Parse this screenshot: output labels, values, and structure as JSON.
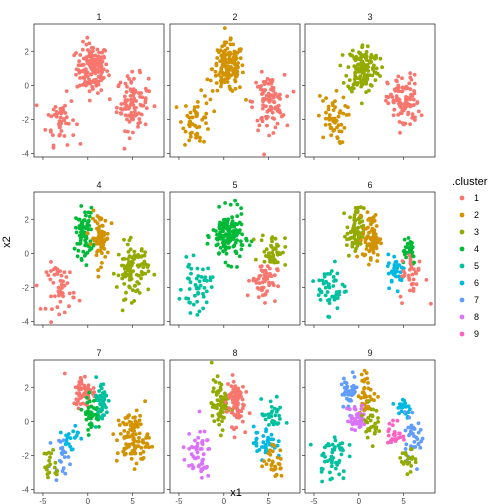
{
  "chart_data": {
    "type": "scatter",
    "xlabel": "x1",
    "ylabel": "x2",
    "xlim": [
      -6,
      8.5
    ],
    "ylim": [
      -4.2,
      3.6
    ],
    "x_ticks": [
      -5,
      0,
      5
    ],
    "y_ticks": [
      -4,
      -2,
      0,
      2
    ],
    "legend": {
      "title": ".cluster",
      "position": "right",
      "entries": [
        "1",
        "2",
        "3",
        "4",
        "5",
        "6",
        "7",
        "8",
        "9"
      ]
    },
    "colors": {
      "1": "#F8766D",
      "2": "#D39200",
      "3": "#93AA00",
      "4": "#00BA38",
      "5": "#00C19F",
      "6": "#00B9E3",
      "7": "#619CFF",
      "8": "#DB72FB",
      "9": "#FF61C3"
    },
    "panels": [
      {
        "k": "1",
        "groups": [
          {
            "cluster": "1",
            "center": [
              0.5,
              1.0
            ],
            "spread": [
              1.1,
              0.9
            ],
            "count": 150
          },
          {
            "cluster": "1",
            "center": [
              -3.0,
              -2.0
            ],
            "spread": [
              1.0,
              0.9
            ],
            "count": 50
          },
          {
            "cluster": "1",
            "center": [
              5.0,
              -1.0
            ],
            "spread": [
              1.1,
              1.0
            ],
            "count": 100
          }
        ]
      },
      {
        "k": "2",
        "groups": [
          {
            "cluster": "2",
            "center": [
              0.5,
              1.0
            ],
            "spread": [
              1.1,
              0.9
            ],
            "count": 150
          },
          {
            "cluster": "2",
            "center": [
              -3.0,
              -2.0
            ],
            "spread": [
              1.0,
              0.9
            ],
            "count": 50
          },
          {
            "cluster": "1",
            "center": [
              5.0,
              -1.0
            ],
            "spread": [
              1.1,
              1.0
            ],
            "count": 100
          }
        ]
      },
      {
        "k": "3",
        "groups": [
          {
            "cluster": "3",
            "center": [
              0.5,
              1.0
            ],
            "spread": [
              1.1,
              0.9
            ],
            "count": 150
          },
          {
            "cluster": "2",
            "center": [
              -3.0,
              -2.0
            ],
            "spread": [
              1.0,
              0.9
            ],
            "count": 50
          },
          {
            "cluster": "1",
            "center": [
              5.0,
              -1.0
            ],
            "spread": [
              1.1,
              1.0
            ],
            "count": 100
          }
        ]
      },
      {
        "k": "4",
        "groups": [
          {
            "cluster": "4",
            "center": [
              -0.4,
              1.2
            ],
            "spread": [
              0.6,
              0.9
            ],
            "count": 75
          },
          {
            "cluster": "2",
            "center": [
              1.4,
              0.9
            ],
            "spread": [
              0.6,
              0.9
            ],
            "count": 75
          },
          {
            "cluster": "1",
            "center": [
              -3.0,
              -2.0
            ],
            "spread": [
              1.0,
              0.9
            ],
            "count": 50
          },
          {
            "cluster": "3",
            "center": [
              5.0,
              -1.0
            ],
            "spread": [
              1.1,
              1.0
            ],
            "count": 100
          }
        ]
      },
      {
        "k": "5",
        "groups": [
          {
            "cluster": "4",
            "center": [
              0.5,
              1.0
            ],
            "spread": [
              1.1,
              0.9
            ],
            "count": 150
          },
          {
            "cluster": "5",
            "center": [
              -3.0,
              -2.0
            ],
            "spread": [
              1.0,
              0.9
            ],
            "count": 50
          },
          {
            "cluster": "3",
            "center": [
              5.5,
              0.2
            ],
            "spread": [
              0.9,
              0.6
            ],
            "count": 45
          },
          {
            "cluster": "1",
            "center": [
              4.5,
              -1.6
            ],
            "spread": [
              0.9,
              0.7
            ],
            "count": 55
          }
        ]
      },
      {
        "k": "6",
        "groups": [
          {
            "cluster": "3",
            "center": [
              -0.4,
              1.2
            ],
            "spread": [
              0.6,
              0.9
            ],
            "count": 75
          },
          {
            "cluster": "2",
            "center": [
              1.4,
              0.9
            ],
            "spread": [
              0.6,
              0.9
            ],
            "count": 75
          },
          {
            "cluster": "5",
            "center": [
              -3.0,
              -2.0
            ],
            "spread": [
              1.0,
              0.9
            ],
            "count": 50
          },
          {
            "cluster": "4",
            "center": [
              5.5,
              0.3
            ],
            "spread": [
              0.6,
              0.6
            ],
            "count": 30
          },
          {
            "cluster": "6",
            "center": [
              4.2,
              -1.0
            ],
            "spread": [
              0.6,
              0.6
            ],
            "count": 35
          },
          {
            "cluster": "1",
            "center": [
              6.0,
              -1.4
            ],
            "spread": [
              0.9,
              0.9
            ],
            "count": 35
          }
        ]
      },
      {
        "k": "7",
        "groups": [
          {
            "cluster": "1",
            "center": [
              -0.4,
              1.8
            ],
            "spread": [
              0.8,
              0.6
            ],
            "count": 60
          },
          {
            "cluster": "4",
            "center": [
              0.4,
              0.5
            ],
            "spread": [
              0.6,
              0.6
            ],
            "count": 45
          },
          {
            "cluster": "5",
            "center": [
              1.5,
              1.2
            ],
            "spread": [
              0.5,
              0.8
            ],
            "count": 45
          },
          {
            "cluster": "6",
            "center": [
              -2.0,
              -1.0
            ],
            "spread": [
              0.6,
              0.6
            ],
            "count": 20
          },
          {
            "cluster": "7",
            "center": [
              -3.0,
              -2.0
            ],
            "spread": [
              0.6,
              0.6
            ],
            "count": 20
          },
          {
            "cluster": "3",
            "center": [
              -4.0,
              -2.6
            ],
            "spread": [
              0.6,
              0.7
            ],
            "count": 20
          },
          {
            "cluster": "2",
            "center": [
              5.0,
              -1.0
            ],
            "spread": [
              1.1,
              1.0
            ],
            "count": 100
          }
        ]
      },
      {
        "k": "8",
        "groups": [
          {
            "cluster": "3",
            "center": [
              -0.4,
              1.0
            ],
            "spread": [
              0.6,
              0.9
            ],
            "count": 70
          },
          {
            "cluster": "1",
            "center": [
              1.3,
              1.2
            ],
            "spread": [
              0.6,
              0.9
            ],
            "count": 80
          },
          {
            "cluster": "8",
            "center": [
              -3.0,
              -2.0
            ],
            "spread": [
              1.0,
              0.9
            ],
            "count": 50
          },
          {
            "cluster": "5",
            "center": [
              5.5,
              0.3
            ],
            "spread": [
              0.8,
              0.6
            ],
            "count": 30
          },
          {
            "cluster": "6",
            "center": [
              4.6,
              -1.2
            ],
            "spread": [
              0.8,
              0.6
            ],
            "count": 40
          },
          {
            "cluster": "2",
            "center": [
              5.5,
              -2.4
            ],
            "spread": [
              0.7,
              0.6
            ],
            "count": 30
          }
        ]
      },
      {
        "k": "9",
        "groups": [
          {
            "cluster": "7",
            "center": [
              -1.0,
              1.8
            ],
            "spread": [
              0.6,
              0.6
            ],
            "count": 40
          },
          {
            "cluster": "2",
            "center": [
              0.9,
              1.6
            ],
            "spread": [
              0.6,
              0.8
            ],
            "count": 40
          },
          {
            "cluster": "8",
            "center": [
              -0.2,
              0.2
            ],
            "spread": [
              0.7,
              0.5
            ],
            "count": 40
          },
          {
            "cluster": "3",
            "center": [
              1.3,
              0.0
            ],
            "spread": [
              0.5,
              0.6
            ],
            "count": 30
          },
          {
            "cluster": "5",
            "center": [
              -3.0,
              -2.0
            ],
            "spread": [
              1.0,
              0.9
            ],
            "count": 50
          },
          {
            "cluster": "6",
            "center": [
              5.0,
              0.8
            ],
            "spread": [
              0.6,
              0.5
            ],
            "count": 20
          },
          {
            "cluster": "9",
            "center": [
              4.0,
              -0.8
            ],
            "spread": [
              0.5,
              0.6
            ],
            "count": 25
          },
          {
            "cluster": "7",
            "center": [
              6.1,
              -0.8
            ],
            "spread": [
              0.8,
              0.8
            ],
            "count": 35
          },
          {
            "cluster": "3",
            "center": [
              5.5,
              -2.4
            ],
            "spread": [
              0.6,
              0.5
            ],
            "count": 20
          }
        ]
      }
    ]
  }
}
